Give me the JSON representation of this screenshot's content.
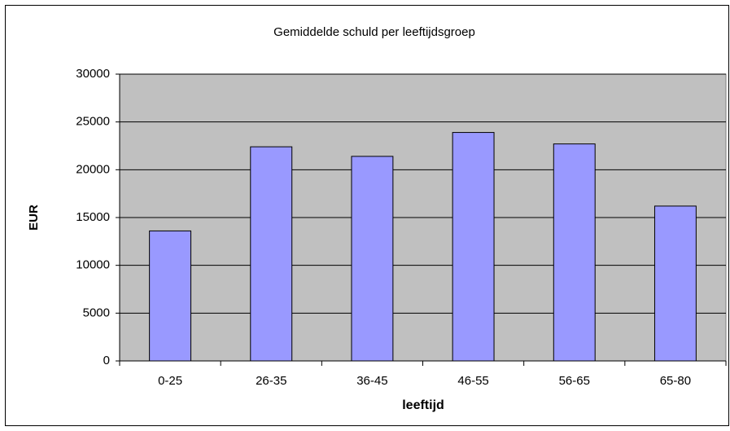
{
  "chart_data": {
    "type": "bar",
    "title": "Gemiddelde schuld per leeftijdsgroep",
    "x_label": "leeftijd",
    "y_label": "EUR",
    "categories": [
      "0-25",
      "26-35",
      "36-45",
      "46-55",
      "56-65",
      "65-80"
    ],
    "values": [
      13600,
      22400,
      21400,
      23900,
      22700,
      16200
    ],
    "color": "#9999ff",
    "ylim": [
      0,
      30000
    ],
    "yticks": [
      0,
      5000,
      10000,
      15000,
      20000,
      25000,
      30000
    ],
    "grid": true
  }
}
